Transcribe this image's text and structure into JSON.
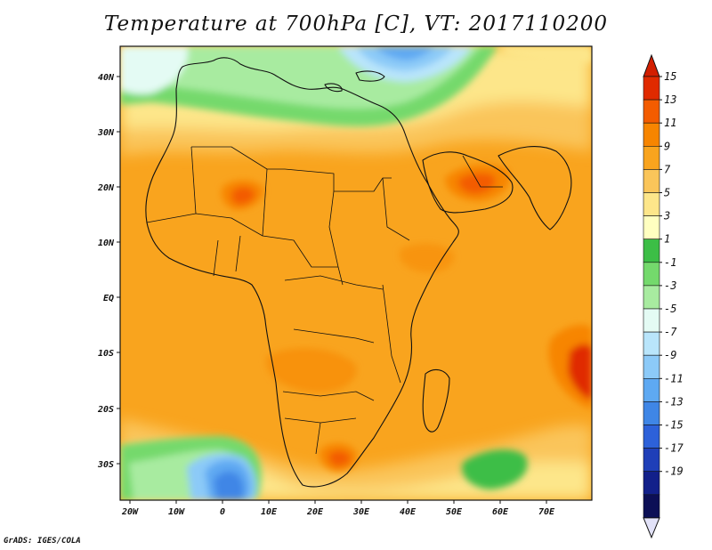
{
  "title": "Temperature at 700hPa [C], VT: 2017110200",
  "credit": "GrADS: IGES/COLA",
  "map": {
    "variable": "Temperature",
    "level": "700hPa",
    "units": "C",
    "valid_time": "2017110200",
    "lon_range": [
      -22,
      80
    ],
    "lat_range": [
      -37,
      46
    ],
    "lat_labels": [
      "40N",
      "30N",
      "20N",
      "10N",
      "EQ",
      "10S",
      "20S",
      "30S"
    ],
    "lon_labels": [
      "20W",
      "10W",
      "0",
      "10E",
      "20E",
      "30E",
      "40E",
      "50E",
      "60E",
      "70E"
    ]
  },
  "colorbar": {
    "labels": [
      "15",
      "13",
      "11",
      "9",
      "7",
      "5",
      "3",
      "1",
      "-1",
      "-3",
      "-5",
      "-7",
      "-9",
      "-11",
      "-13",
      "-15",
      "-17",
      "-19"
    ],
    "colors": [
      "#e02a00",
      "#f35c00",
      "#f78500",
      "#f9a41e",
      "#fac55a",
      "#fde68a",
      "#ffffc0",
      "#3cbe46",
      "#74d96c",
      "#a8eba0",
      "#e4fbf4",
      "#b9e5fb",
      "#8ccaf8",
      "#5ea9f2",
      "#3f86e6",
      "#2d61d9",
      "#1f3fb8",
      "#12208a",
      "#0c0f56"
    ],
    "top_color": "#d21e00",
    "bottom_color": "#e2e2f8"
  }
}
